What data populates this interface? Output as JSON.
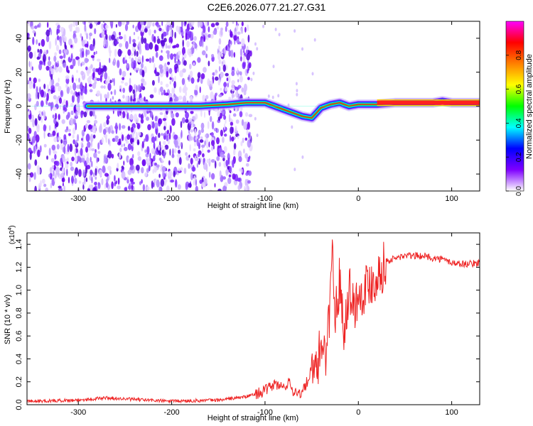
{
  "title": "C2E6.2026.077.21.27.G31",
  "chart_data": [
    {
      "type": "heatmap",
      "title": "C2E6.2026.077.21.27.G31",
      "xlabel": "Height of straight line (km)",
      "ylabel": "Frequency (Hz)",
      "xlim": [
        -355,
        130
      ],
      "ylim": [
        -50,
        50
      ],
      "xticks": [
        -300,
        -200,
        -100,
        0,
        100
      ],
      "xtick_labels": [
        "-300",
        "-200",
        "-100",
        "0",
        "100"
      ],
      "yticks": [
        -40,
        -20,
        0,
        20,
        40
      ],
      "ytick_labels": [
        "-40",
        "-20",
        "0",
        "20",
        "40"
      ],
      "colorbar": {
        "label": "Normalized spectral amplitude",
        "range": [
          0,
          1
        ],
        "ticks": [
          0.0,
          0.2,
          0.4,
          0.6,
          0.8
        ],
        "tick_labels": [
          "0.0",
          "0.2",
          "0.4",
          "0.6",
          "0.8"
        ],
        "colormap": [
          "#ffffff",
          "#7f00ff",
          "#0000ff",
          "#00ffff",
          "#00ff00",
          "#ffff00",
          "#ff8000",
          "#ff0000",
          "#ff00ff"
        ]
      },
      "ridge": {
        "x": [
          -290,
          -270,
          -250,
          -200,
          -170,
          -140,
          -120,
          -100,
          -90,
          -80,
          -70,
          -60,
          -50,
          -45,
          -40,
          -30,
          -20,
          -10,
          0,
          20,
          40,
          60,
          80,
          90,
          100,
          130
        ],
        "y": [
          0,
          0,
          0,
          0,
          0,
          1,
          2,
          2,
          0,
          -2,
          -4,
          -6,
          -7,
          -4,
          -1,
          1,
          2,
          0,
          1,
          1,
          2,
          2,
          2,
          3,
          2,
          2
        ]
      },
      "noise_region": [
        -355,
        -115
      ]
    },
    {
      "type": "line",
      "xlabel": "Height of straight line (km)",
      "ylabel": "SNR (10 * v/v)",
      "yscale_label": "(x10",
      "yscale_exponent": "4",
      "xlim": [
        -355,
        130
      ],
      "ylim": [
        0,
        1.5
      ],
      "xticks": [
        -300,
        -200,
        -100,
        0,
        100
      ],
      "xtick_labels": [
        "-300",
        "-200",
        "-100",
        "0",
        "100"
      ],
      "yticks": [
        0.0,
        0.2,
        0.4,
        0.6,
        0.8,
        1.0,
        1.2,
        1.4
      ],
      "ytick_labels": [
        "0.0",
        "0.2",
        "0.4",
        "0.6",
        "0.8",
        "1.0",
        "1.2",
        "1.4"
      ],
      "color": "#ee2222",
      "series": [
        {
          "name": "SNR",
          "x": [
            -355,
            -300,
            -270,
            -250,
            -200,
            -150,
            -120,
            -100,
            -90,
            -80,
            -75,
            -70,
            -60,
            -50,
            -45,
            -40,
            -35,
            -30,
            -28,
            -25,
            -20,
            -15,
            -10,
            -5,
            0,
            10,
            20,
            30,
            40,
            50,
            60,
            70,
            80,
            90,
            100,
            110,
            120,
            130
          ],
          "y": [
            0.03,
            0.04,
            0.06,
            0.05,
            0.03,
            0.04,
            0.07,
            0.12,
            0.18,
            0.15,
            0.2,
            0.12,
            0.1,
            0.3,
            0.25,
            0.55,
            0.45,
            0.9,
            1.45,
            0.75,
            1.1,
            0.65,
            1.05,
            0.85,
            0.95,
            1.05,
            1.12,
            1.25,
            1.28,
            1.3,
            1.3,
            1.3,
            1.28,
            1.27,
            1.24,
            1.23,
            1.23,
            1.24
          ]
        }
      ]
    }
  ]
}
